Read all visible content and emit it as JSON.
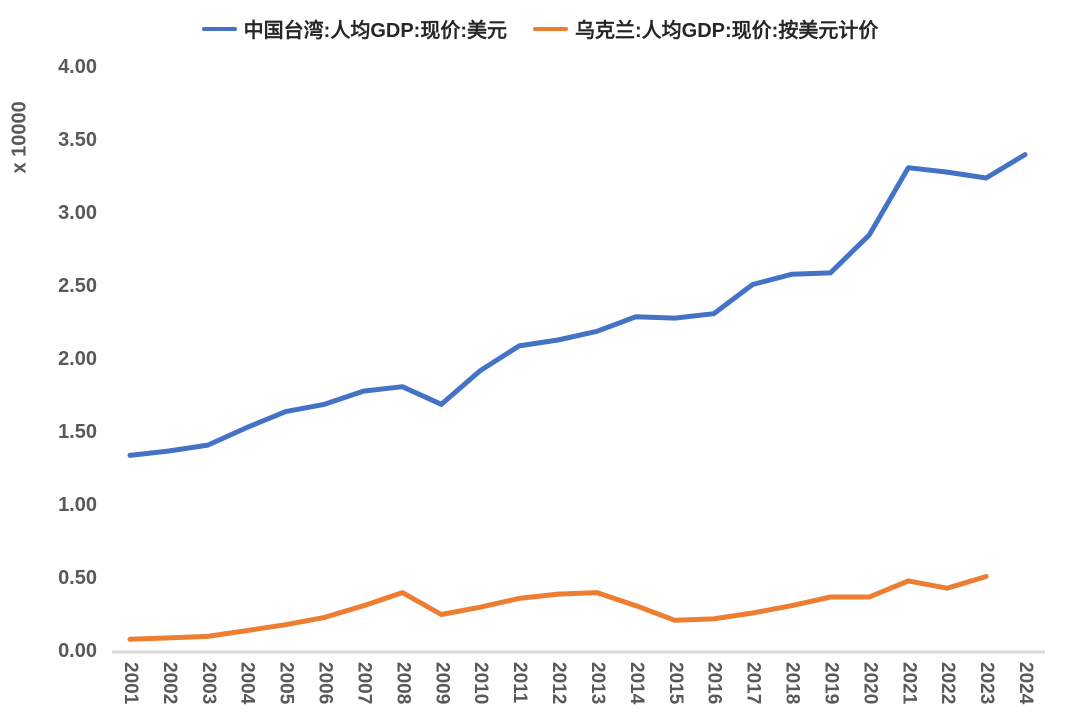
{
  "page": {
    "background": "#ffffff"
  },
  "legend": {
    "items": [
      {
        "label": "中国台湾:人均GDP:现价:美元",
        "color": "#4472C4"
      },
      {
        "label": "乌克兰:人均GDP:现价:按美元计价",
        "color": "#ED7D31"
      }
    ]
  },
  "axis_style": {
    "axis_line_color": "#D9D9D9",
    "tick_text_color": "#595959",
    "legend_text_color": "#262626"
  },
  "chart_data": {
    "type": "line",
    "title": "",
    "unit_label": "x 10000",
    "ylabel": "x 10000",
    "xlabel": "",
    "grid": false,
    "legend_position": "top",
    "ylim": [
      0,
      4
    ],
    "y_ticks": [
      4.0,
      3.5,
      3.0,
      2.5,
      2.0,
      1.5,
      1.0,
      0.5,
      0.0
    ],
    "x": [
      2001,
      2002,
      2003,
      2004,
      2005,
      2006,
      2007,
      2008,
      2009,
      2010,
      2011,
      2012,
      2013,
      2014,
      2015,
      2016,
      2017,
      2018,
      2019,
      2020,
      2021,
      2022,
      2023,
      2024
    ],
    "series": [
      {
        "name": "中国台湾:人均GDP:现价:美元",
        "color": "#4472C4",
        "values": [
          1.34,
          1.37,
          1.41,
          1.53,
          1.64,
          1.69,
          1.78,
          1.81,
          1.69,
          1.92,
          2.09,
          2.13,
          2.19,
          2.29,
          2.28,
          2.31,
          2.51,
          2.58,
          2.59,
          2.85,
          3.31,
          3.28,
          3.24,
          3.4
        ]
      },
      {
        "name": "乌克兰:人均GDP:现价:按美元计价",
        "color": "#ED7D31",
        "values": [
          0.08,
          0.09,
          0.1,
          0.14,
          0.18,
          0.23,
          0.31,
          0.4,
          0.25,
          0.3,
          0.36,
          0.39,
          0.4,
          0.31,
          0.21,
          0.22,
          0.26,
          0.31,
          0.37,
          0.37,
          0.48,
          0.43,
          0.51
        ]
      }
    ]
  }
}
